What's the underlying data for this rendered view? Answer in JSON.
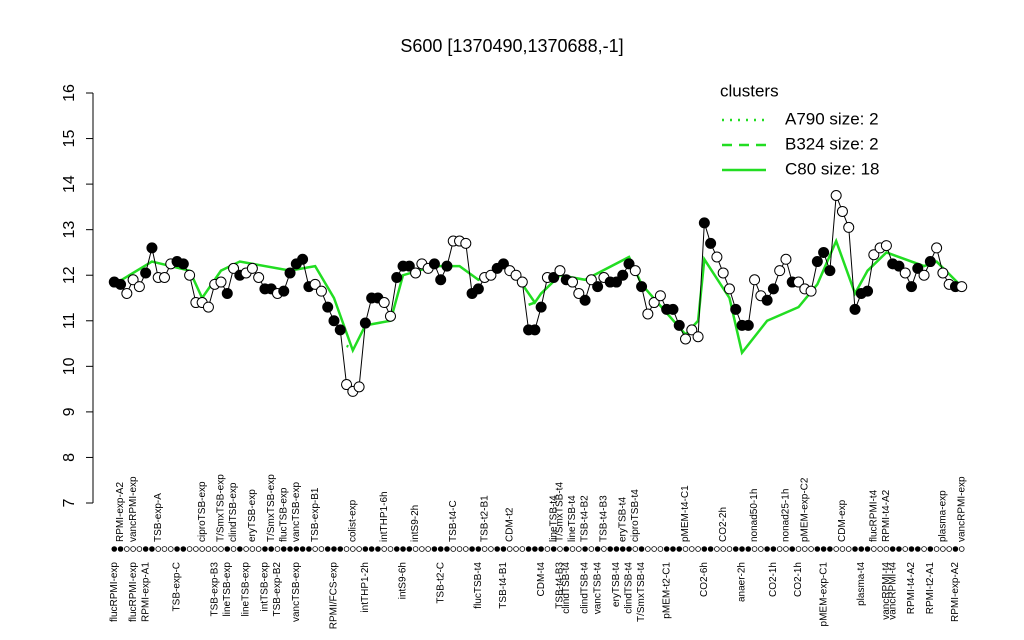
{
  "chart_data": {
    "type": "line",
    "title": "S600 [1370490,1370688,-1]",
    "ylim": [
      7,
      16
    ],
    "yticks": [
      7,
      8,
      9,
      10,
      11,
      12,
      13,
      14,
      15,
      16
    ],
    "xlim": [
      -1,
      136
    ],
    "values": [
      11.85,
      11.8,
      11.6,
      11.9,
      11.75,
      12.05,
      12.6,
      11.95,
      11.95,
      12.25,
      12.3,
      12.25,
      12.0,
      11.4,
      11.4,
      11.3,
      11.8,
      11.85,
      11.6,
      12.15,
      12.0,
      12.05,
      12.15,
      11.95,
      11.7,
      11.7,
      11.6,
      11.65,
      12.05,
      12.25,
      12.35,
      11.75,
      11.8,
      11.65,
      11.3,
      11.0,
      10.8,
      9.6,
      9.45,
      9.55,
      10.95,
      11.5,
      11.5,
      11.4,
      11.1,
      11.95,
      12.2,
      12.2,
      12.05,
      12.25,
      12.15,
      12.25,
      11.9,
      12.2,
      12.75,
      12.75,
      12.7,
      11.6,
      11.7,
      11.95,
      12.0,
      12.15,
      12.25,
      12.1,
      12.0,
      11.85,
      10.8,
      10.8,
      11.3,
      11.95,
      11.95,
      12.1,
      11.9,
      11.85,
      11.6,
      11.45,
      11.9,
      11.75,
      11.95,
      11.85,
      11.85,
      12.0,
      12.25,
      12.1,
      11.75,
      11.15,
      11.4,
      11.55,
      11.25,
      11.25,
      10.9,
      10.6,
      10.8,
      10.65,
      13.15,
      12.7,
      12.4,
      12.05,
      11.7,
      11.25,
      10.9,
      10.9,
      11.9,
      11.55,
      11.45,
      11.7,
      12.1,
      12.35,
      11.85,
      11.85,
      11.7,
      11.65,
      12.3,
      12.5,
      12.1,
      13.75,
      13.4,
      13.05,
      11.25,
      11.6,
      11.65,
      12.45,
      12.6,
      12.65,
      12.25,
      12.2,
      12.05,
      11.75,
      12.15,
      12.0,
      12.3,
      12.6,
      12.05,
      11.8,
      11.75,
      11.75
    ],
    "filled": [
      true,
      true,
      false,
      false,
      false,
      true,
      true,
      false,
      false,
      false,
      true,
      true,
      false,
      false,
      false,
      false,
      false,
      false,
      true,
      false,
      true,
      false,
      false,
      false,
      true,
      true,
      false,
      true,
      true,
      true,
      true,
      true,
      false,
      false,
      true,
      true,
      true,
      false,
      false,
      false,
      true,
      true,
      true,
      false,
      false,
      true,
      true,
      true,
      false,
      false,
      false,
      true,
      true,
      true,
      false,
      false,
      false,
      true,
      true,
      false,
      false,
      true,
      true,
      false,
      false,
      false,
      true,
      true,
      true,
      false,
      true,
      false,
      true,
      false,
      false,
      true,
      false,
      true,
      false,
      true,
      true,
      true,
      true,
      false,
      true,
      false,
      false,
      false,
      true,
      true,
      true,
      false,
      false,
      false,
      true,
      true,
      false,
      false,
      false,
      true,
      true,
      true,
      false,
      false,
      true,
      true,
      false,
      false,
      true,
      false,
      false,
      false,
      true,
      true,
      true,
      false,
      false,
      false,
      true,
      true,
      true,
      false,
      false,
      false,
      true,
      true,
      false,
      true,
      true,
      false,
      true,
      false,
      false,
      false,
      true,
      false
    ],
    "color": "#000000",
    "xlabels_top": [
      {
        "value": 1,
        "label": "RPMI-exp-A2"
      },
      {
        "value": 3,
        "label": "vancRPMI-exp"
      },
      {
        "value": 7,
        "label": "TSB-exp-A"
      },
      {
        "value": 14,
        "label": "ciproTSB-exp"
      },
      {
        "value": 17,
        "label": "T/SmxTSB-exp"
      },
      {
        "value": 19,
        "label": "clindTSB-exp"
      },
      {
        "value": 22,
        "label": "eryTSB-exp"
      },
      {
        "value": 25,
        "label": "T/SmxTSB-exp"
      },
      {
        "value": 27,
        "label": "flucTSB-exp"
      },
      {
        "value": 29,
        "label": "vancTSB-exp"
      },
      {
        "value": 32,
        "label": "TSB-exp-B1"
      },
      {
        "value": 38,
        "label": "colist-exp"
      },
      {
        "value": 43,
        "label": "intTHP1-6h"
      },
      {
        "value": 48,
        "label": "intS9-2h"
      },
      {
        "value": 54,
        "label": "TSB-t4-C"
      },
      {
        "value": 59,
        "label": "TSB-t2-B1"
      },
      {
        "value": 63,
        "label": "CDM-t2"
      },
      {
        "value": 70,
        "label": "lineTSB-t4"
      },
      {
        "value": 71,
        "label": "T/SmxTSB-t4"
      },
      {
        "value": 73,
        "label": "lineTSB-t4"
      },
      {
        "value": 75,
        "label": "TSB-t4-B2"
      },
      {
        "value": 78,
        "label": "TSB-t4-B3"
      },
      {
        "value": 81,
        "label": "eryTSB-t4"
      },
      {
        "value": 83,
        "label": "ciproTSB-t4"
      },
      {
        "value": 91,
        "label": "pMEM-t4-C1"
      },
      {
        "value": 97,
        "label": "CO2-2h"
      },
      {
        "value": 102,
        "label": "nonad50-1h"
      },
      {
        "value": 107,
        "label": "nonad25-1h"
      },
      {
        "value": 110,
        "label": "pMEM-exp-C2"
      },
      {
        "value": 116,
        "label": "CDM-exp"
      },
      {
        "value": 121,
        "label": "flucRPMI-t4"
      },
      {
        "value": 123,
        "label": "RPMI-t4-A2"
      },
      {
        "value": 132,
        "label": "plasma-exp"
      },
      {
        "value": 135,
        "label": "vancRPMI-exp"
      }
    ],
    "xlabels_bottom": [
      {
        "value": 0,
        "label": "flucRPMI-exp"
      },
      {
        "value": 3,
        "label": "flucRPMI-exp"
      },
      {
        "value": 5,
        "label": "RPMI-exp-A1"
      },
      {
        "value": 10,
        "label": "TSB-exp-C"
      },
      {
        "value": 16,
        "label": "TSB-exp-B3"
      },
      {
        "value": 18,
        "label": "lineTSB-exp"
      },
      {
        "value": 21,
        "label": "lineTSB-exp"
      },
      {
        "value": 24,
        "label": "intTSB-exp"
      },
      {
        "value": 26,
        "label": "TSB-exp-B2"
      },
      {
        "value": 29,
        "label": "vancTSB-exp"
      },
      {
        "value": 35,
        "label": "RPMI/FCS-exp"
      },
      {
        "value": 40,
        "label": "intTHP1-2h"
      },
      {
        "value": 46,
        "label": "intS9-6h"
      },
      {
        "value": 52,
        "label": "TSB-t2-C"
      },
      {
        "value": 58,
        "label": "flucTSB-t4"
      },
      {
        "value": 62,
        "label": "TSB-t4-B1"
      },
      {
        "value": 68,
        "label": "CDM-t4"
      },
      {
        "value": 71,
        "label": "TSB-t4-B3"
      },
      {
        "value": 72,
        "label": "clindTSB-t4"
      },
      {
        "value": 75,
        "label": "clindTSB-t4"
      },
      {
        "value": 77,
        "label": "vancTSB-t4"
      },
      {
        "value": 80,
        "label": "eryTSB-t4"
      },
      {
        "value": 82,
        "label": "clindTSB-t4"
      },
      {
        "value": 84,
        "label": "T/SmxTSB-t4"
      },
      {
        "value": 88,
        "label": "pMEM-t2-C1"
      },
      {
        "value": 94,
        "label": "CO2-6h"
      },
      {
        "value": 100,
        "label": "anaer-2h"
      },
      {
        "value": 105,
        "label": "CO2-1h"
      },
      {
        "value": 109,
        "label": "CO2-1h"
      },
      {
        "value": 113,
        "label": "pMEM-exp-C1"
      },
      {
        "value": 119,
        "label": "plasma-t4"
      },
      {
        "value": 123,
        "label": "vancRPMI-t4"
      },
      {
        "value": 124,
        "label": "vancRPMI-t4"
      },
      {
        "value": 127,
        "label": "RPMI-t4-A2"
      },
      {
        "value": 130,
        "label": "RPMI-t2-A1"
      },
      {
        "value": 134,
        "label": "RPMI-exp-A2"
      }
    ],
    "legend_title": "clusters",
    "cluster_color": "#22dd22",
    "series": [
      {
        "name": "A790 size: 2",
        "dash": "dotted",
        "x": [
          37,
          38
        ],
        "values": [
          10.45,
          10.4
        ]
      },
      {
        "name": "B324 size: 2",
        "dash": "dashed",
        "x": [
          66,
          67
        ],
        "values": [
          11.35,
          11.4
        ]
      },
      {
        "name": "C80 size: 18",
        "dash": "solid",
        "x": [
          0,
          6,
          12,
          14,
          17,
          20,
          28,
          32,
          35,
          38,
          40,
          44,
          46,
          51,
          55,
          58,
          62,
          65,
          67,
          68,
          71,
          75,
          82,
          84,
          91,
          93,
          94,
          98,
          100,
          104,
          109,
          112,
          115,
          118,
          120,
          123,
          129,
          131,
          135
        ],
        "values": [
          11.8,
          12.3,
          12.1,
          11.5,
          12.1,
          12.3,
          12.1,
          12.2,
          11.5,
          10.35,
          10.9,
          11.0,
          12.0,
          12.2,
          12.2,
          11.9,
          12.2,
          11.8,
          11.4,
          11.6,
          12.0,
          11.9,
          12.4,
          11.8,
          10.7,
          11.0,
          12.35,
          11.5,
          10.3,
          11.0,
          11.3,
          11.8,
          12.75,
          11.6,
          12.1,
          12.5,
          12.2,
          12.3,
          11.75
        ]
      }
    ]
  }
}
